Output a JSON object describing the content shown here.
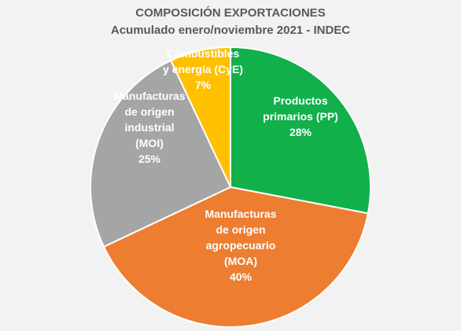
{
  "chart_data": {
    "type": "pie",
    "title": "COMPOSICIÓN EXPORTACIONES",
    "subtitle": "Acumulado enero/noviembre 2021 - INDEC",
    "slices": [
      {
        "label_lines": [
          "Productos",
          "primarios (PP)"
        ],
        "value": 28,
        "value_label": "28%",
        "color": "#11b04b"
      },
      {
        "label_lines": [
          "Manufacturas",
          "de origen",
          "agropecuario",
          "(MOA)"
        ],
        "value": 40,
        "value_label": "40%",
        "color": "#ed7d31"
      },
      {
        "label_lines": [
          "Manufacturas",
          "de origen",
          "industrial",
          "(MOI)"
        ],
        "value": 25,
        "value_label": "25%",
        "color": "#a5a5a5"
      },
      {
        "label_lines": [
          "Combustibles",
          "y energía (CyE)"
        ],
        "value": 7,
        "value_label": "7%",
        "color": "#ffc000"
      }
    ]
  }
}
